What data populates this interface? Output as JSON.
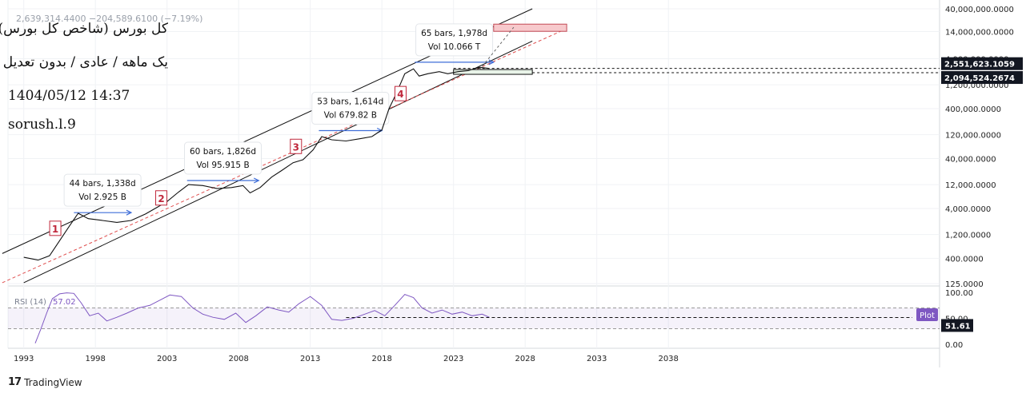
{
  "header": {
    "ohlc_text": "2,639,314.4400  −204,589.6100 (−7.19%)"
  },
  "annotations_text": {
    "title": "کل بورس (شاخص کل بورس)",
    "subtitle": "یک ماهه / عادی / بدون تعدیل",
    "datetime": "1404/05/12 14:37",
    "author": "sorush.l.9"
  },
  "brand": {
    "name": "TradingView",
    "logo": "17"
  },
  "chart_data": {
    "type": "line",
    "scale": "log",
    "x_ticks": [
      "1993",
      "1998",
      "2003",
      "2008",
      "2013",
      "2018",
      "2023",
      "2028",
      "2033",
      "2038"
    ],
    "y_ticks": [
      "40,000,000.0000",
      "14,000,000.0000",
      "4,000,000.0000",
      "1,200,000.0000",
      "400,000.0000",
      "120,000.0000",
      "40,000.0000",
      "12,000.0000",
      "4,000.0000",
      "1,200.0000",
      "400.0000",
      "125.0000"
    ],
    "y_tick_values": [
      40000000,
      14000000,
      4000000,
      1200000,
      400000,
      120000,
      40000,
      12000,
      4000,
      1200,
      400,
      125
    ],
    "price_labels": [
      {
        "text": "2,551,623.1059",
        "value": 2551623.1059
      },
      {
        "text": "2,094,524.2674",
        "value": 2094524.2674
      }
    ],
    "series": [
      {
        "x": [
          1993.0,
          1994.0,
          1994.8,
          1995.5,
          1996.2,
          1996.8,
          1997.5,
          1998.5,
          1999.5,
          2000.5,
          2001.5,
          2002.3,
          2003.0,
          2003.8,
          2004.5,
          2005.5,
          2006.5,
          2007.5,
          2008.3,
          2008.8,
          2009.5,
          2010.3,
          2011.0,
          2011.8,
          2012.5,
          2013.2,
          2013.8,
          2014.5,
          2015.5,
          2016.5,
          2017.3,
          2018.0,
          2018.5,
          2019.0,
          2019.6,
          2020.2,
          2020.6,
          2021.2,
          2022.0,
          2022.6,
          2023.3,
          2024.0,
          2024.8,
          2025.5
        ],
        "y": [
          420,
          370,
          450,
          900,
          1800,
          3200,
          2500,
          2300,
          2100,
          2300,
          3100,
          4200,
          5500,
          8500,
          12000,
          11500,
          10000,
          10500,
          11500,
          8200,
          10500,
          17000,
          23000,
          33000,
          38000,
          60000,
          110000,
          95000,
          90000,
          100000,
          110000,
          150000,
          400000,
          800000,
          2000000,
          2500000,
          1800000,
          2000000,
          2200000,
          2000000,
          2200000,
          2300000,
          2700000,
          2550000
        ]
      }
    ],
    "channel": {
      "upper": [
        [
          1991.5,
          500
        ],
        [
          2028.5,
          40000000
        ]
      ],
      "lower": [
        [
          1993.0,
          130
        ],
        [
          2028.5,
          9000000
        ]
      ],
      "mid": [
        [
          1991.5,
          130
        ],
        [
          2031,
          16500000
        ]
      ]
    },
    "cycles": [
      {
        "num": "1",
        "x": 1995.2,
        "y": 1600
      },
      {
        "num": "2",
        "x": 2002.6,
        "y": 6500
      },
      {
        "num": "3",
        "x": 2012.0,
        "y": 70000
      },
      {
        "num": "4",
        "x": 2019.3,
        "y": 800000
      }
    ],
    "range_boxes": [
      {
        "line1": "44 bars, 1,338d",
        "line2": "Vol 2.925 B",
        "x_from": 1996.5,
        "x_to": 2000.5,
        "y": 3300
      },
      {
        "line1": "60 bars, 1,826d",
        "line2": "Vol 95.915 B",
        "x_from": 2004.4,
        "x_to": 2009.4,
        "y": 14500
      },
      {
        "line1": "53 bars, 1,614d",
        "line2": "Vol 679.82 B",
        "x_from": 2013.6,
        "x_to": 2018.0,
        "y": 145000
      },
      {
        "line1": "65 bars, 1,978d",
        "line2": "Vol 10.066 T",
        "x_from": 2020.3,
        "x_to": 2025.8,
        "y": 3400000
      }
    ],
    "rsi": {
      "label": "RSI (14)",
      "value_text": "57.02",
      "last_text": "51.61",
      "last_value": 51.61,
      "plot_label": "Plot",
      "ticks": [
        "100.00",
        "50.00",
        "0.00"
      ],
      "tick_values": [
        100,
        50,
        0
      ],
      "upper_band": 70,
      "lower_band": 30,
      "x": [
        1993.8,
        1994.2,
        1994.6,
        1995.0,
        1995.5,
        1996.0,
        1996.5,
        1997.0,
        1997.6,
        1998.2,
        1998.8,
        1999.5,
        2000.2,
        2001.0,
        2001.8,
        2002.5,
        2003.2,
        2004.0,
        2004.8,
        2005.5,
        2006.2,
        2007.0,
        2007.8,
        2008.5,
        2009.2,
        2010.0,
        2010.8,
        2011.5,
        2012.2,
        2013.0,
        2013.8,
        2014.5,
        2015.2,
        2016.0,
        2016.8,
        2017.5,
        2018.2,
        2018.9,
        2019.6,
        2020.2,
        2020.8,
        2021.5,
        2022.2,
        2022.9,
        2023.6,
        2024.3,
        2025.0,
        2025.5
      ],
      "y": [
        2,
        30,
        60,
        88,
        97,
        99,
        98,
        80,
        55,
        60,
        45,
        52,
        60,
        70,
        75,
        85,
        95,
        92,
        70,
        58,
        52,
        48,
        60,
        42,
        55,
        72,
        66,
        62,
        78,
        92,
        75,
        48,
        46,
        50,
        58,
        65,
        55,
        75,
        96,
        90,
        70,
        60,
        66,
        58,
        62,
        55,
        58,
        52
      ]
    }
  }
}
